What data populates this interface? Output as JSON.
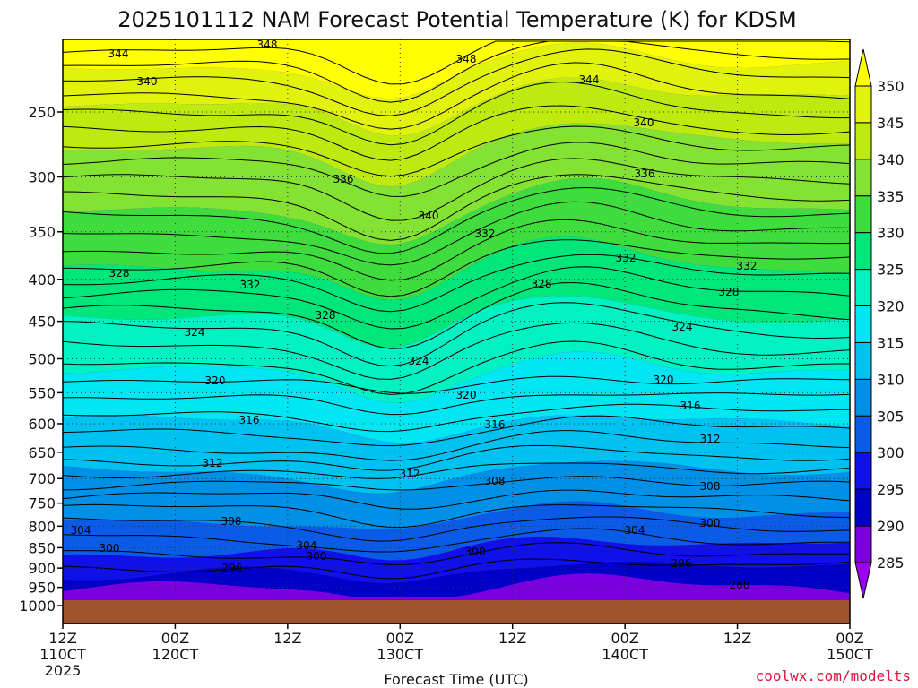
{
  "chart_data": {
    "type": "heatmap",
    "title": "2025101112 NAM Forecast Potential Temperature (K) for KDSM",
    "xlabel": "Forecast Time (UTC)",
    "ylabel": "",
    "ylim": [
      1000,
      200
    ],
    "y_ticks": [
      "250",
      "300",
      "350",
      "400",
      "450",
      "500",
      "550",
      "600",
      "650",
      "700",
      "750",
      "800",
      "850",
      "900",
      "950",
      "1000"
    ],
    "x_ticks": [
      {
        "line1": "12Z",
        "line2": "110CT",
        "line3": "2025"
      },
      {
        "line1": "00Z",
        "line2": "120CT",
        "line3": ""
      },
      {
        "line1": "12Z",
        "line2": "",
        "line3": ""
      },
      {
        "line1": "00Z",
        "line2": "130CT",
        "line3": ""
      },
      {
        "line1": "12Z",
        "line2": "",
        "line3": ""
      },
      {
        "line1": "00Z",
        "line2": "140CT",
        "line3": ""
      },
      {
        "line1": "12Z",
        "line2": "",
        "line3": ""
      },
      {
        "line1": "00Z",
        "line2": "150CT",
        "line3": ""
      }
    ],
    "colorbar": {
      "levels": [
        "350",
        "345",
        "340",
        "335",
        "330",
        "325",
        "320",
        "315",
        "310",
        "305",
        "300",
        "295",
        "290",
        "285"
      ],
      "colors": [
        "#FFFF00",
        "#E1F20C",
        "#BFEA10",
        "#83E232",
        "#3FDC3E",
        "#00E67A",
        "#00F2C2",
        "#00E6F2",
        "#00C2F0",
        "#0090E6",
        "#0A5CE6",
        "#1010E8",
        "#0000C8",
        "#7A00E0",
        "#9B00F0"
      ]
    },
    "contour_labels": [
      "348",
      "344",
      "340",
      "348",
      "344",
      "340",
      "336",
      "340",
      "336",
      "332",
      "332",
      "332",
      "328",
      "332",
      "328",
      "328",
      "328",
      "324",
      "324",
      "324",
      "320",
      "320",
      "320",
      "316",
      "316",
      "316",
      "312",
      "312",
      "312",
      "308",
      "308",
      "308",
      "304",
      "304",
      "304",
      "300",
      "300",
      "300",
      "300",
      "296",
      "296",
      "288"
    ],
    "terrain_color": "#A0522D"
  },
  "credit": "coolwx.com/modelts"
}
